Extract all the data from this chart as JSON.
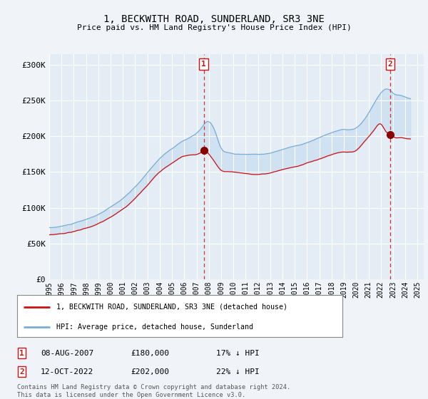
{
  "title": "1, BECKWITH ROAD, SUNDERLAND, SR3 3NE",
  "subtitle": "Price paid vs. HM Land Registry's House Price Index (HPI)",
  "background_color": "#f0f4f8",
  "plot_bg_color": "#e4edf5",
  "ylabel_ticks": [
    "£0",
    "£50K",
    "£100K",
    "£150K",
    "£200K",
    "£250K",
    "£300K"
  ],
  "ytick_values": [
    0,
    50000,
    100000,
    150000,
    200000,
    250000,
    300000
  ],
  "ylim": [
    0,
    315000
  ],
  "xlim_start": 1995.0,
  "xlim_end": 2025.5,
  "hpi_color": "#7aadd4",
  "price_color": "#cc1111",
  "fill_color": "#c8ddf0",
  "marker1_x": 2007.58,
  "marker1_y": 180000,
  "marker2_x": 2022.78,
  "marker2_y": 202000,
  "marker1_label": "08-AUG-2007",
  "marker1_price": "£180,000",
  "marker1_hpi": "17% ↓ HPI",
  "marker2_label": "12-OCT-2022",
  "marker2_price": "£202,000",
  "marker2_hpi": "22% ↓ HPI",
  "legend_line1": "1, BECKWITH ROAD, SUNDERLAND, SR3 3NE (detached house)",
  "legend_line2": "HPI: Average price, detached house, Sunderland",
  "footnote": "Contains HM Land Registry data © Crown copyright and database right 2024.\nThis data is licensed under the Open Government Licence v3.0."
}
